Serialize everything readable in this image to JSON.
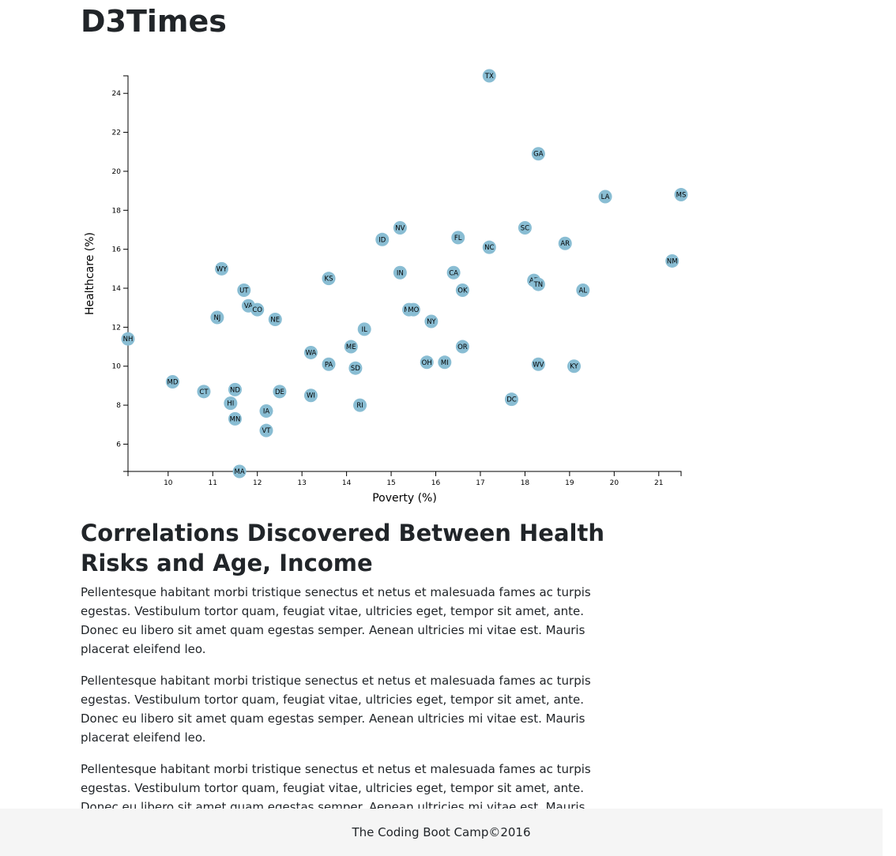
{
  "header": {
    "title": "D3Times"
  },
  "article": {
    "heading": "Correlations Discovered Between Health Risks and Age, Income",
    "paragraphs": [
      "Pellentesque habitant morbi tristique senectus et netus et malesuada fames ac turpis egestas. Vestibulum tortor quam, feugiat vitae, ultricies eget, tempor sit amet, ante. Donec eu libero sit amet quam egestas semper. Aenean ultricies mi vitae est. Mauris placerat eleifend leo.",
      "Pellentesque habitant morbi tristique senectus et netus et malesuada fames ac turpis egestas. Vestibulum tortor quam, feugiat vitae, ultricies eget, tempor sit amet, ante. Donec eu libero sit amet quam egestas semper. Aenean ultricies mi vitae est. Mauris placerat eleifend leo.",
      "Pellentesque habitant morbi tristique senectus et netus et malesuada fames ac turpis egestas. Vestibulum tortor quam, feugiat vitae, ultricies eget, tempor sit amet, ante. Donec eu libero sit amet quam egestas semper. Aenean ultricies mi vitae est. Mauris placerat eleifend leo."
    ]
  },
  "footer": {
    "text": "The Coding Boot Camp©2016"
  },
  "colors": {
    "dot": "#89bdd3",
    "axis": "#000000"
  },
  "chart_data": {
    "type": "scatter",
    "xlabel": "Poverty (%)",
    "ylabel": "Healthcare (%)",
    "xlim": [
      9.1,
      21.5
    ],
    "ylim": [
      4.6,
      24.9
    ],
    "x_ticks": [
      10,
      11,
      12,
      13,
      14,
      15,
      16,
      17,
      18,
      19,
      20,
      21
    ],
    "y_ticks": [
      6,
      8,
      10,
      12,
      14,
      16,
      18,
      20,
      22,
      24
    ],
    "grid": false,
    "points": [
      {
        "label": "TX",
        "x": 17.2,
        "y": 24.9
      },
      {
        "label": "GA",
        "x": 18.3,
        "y": 20.9
      },
      {
        "label": "LA",
        "x": 19.8,
        "y": 18.7
      },
      {
        "label": "MS",
        "x": 21.5,
        "y": 18.8
      },
      {
        "label": "FL",
        "x": 16.5,
        "y": 16.6
      },
      {
        "label": "NV",
        "x": 15.2,
        "y": 17.1
      },
      {
        "label": "SC",
        "x": 18.0,
        "y": 17.1
      },
      {
        "label": "ID",
        "x": 14.8,
        "y": 16.5
      },
      {
        "label": "AR",
        "x": 18.9,
        "y": 16.3
      },
      {
        "label": "NC",
        "x": 17.2,
        "y": 16.1
      },
      {
        "label": "NM",
        "x": 21.3,
        "y": 15.4
      },
      {
        "label": "WY",
        "x": 11.2,
        "y": 15.0
      },
      {
        "label": "IN",
        "x": 15.2,
        "y": 14.8
      },
      {
        "label": "CA",
        "x": 16.4,
        "y": 14.8
      },
      {
        "label": "KS",
        "x": 13.6,
        "y": 14.5
      },
      {
        "label": "AZ",
        "x": 18.2,
        "y": 14.4
      },
      {
        "label": "TN",
        "x": 18.3,
        "y": 14.2
      },
      {
        "label": "UT",
        "x": 11.7,
        "y": 13.9
      },
      {
        "label": "OK",
        "x": 16.6,
        "y": 13.9
      },
      {
        "label": "AL",
        "x": 19.3,
        "y": 13.9
      },
      {
        "label": "VA",
        "x": 11.8,
        "y": 13.1
      },
      {
        "label": "CO",
        "x": 12.0,
        "y": 12.9
      },
      {
        "label": "MT",
        "x": 15.4,
        "y": 12.9
      },
      {
        "label": "MO",
        "x": 15.5,
        "y": 12.9
      },
      {
        "label": "NJ",
        "x": 11.1,
        "y": 12.5
      },
      {
        "label": "NE",
        "x": 12.4,
        "y": 12.4
      },
      {
        "label": "NY",
        "x": 15.9,
        "y": 12.3
      },
      {
        "label": "IL",
        "x": 14.4,
        "y": 11.9
      },
      {
        "label": "NH",
        "x": 9.1,
        "y": 11.4
      },
      {
        "label": "ME",
        "x": 14.1,
        "y": 11.0
      },
      {
        "label": "OR",
        "x": 16.6,
        "y": 11.0
      },
      {
        "label": "WA",
        "x": 13.2,
        "y": 10.7
      },
      {
        "label": "OH",
        "x": 15.8,
        "y": 10.2
      },
      {
        "label": "MI",
        "x": 16.2,
        "y": 10.2
      },
      {
        "label": "PA",
        "x": 13.6,
        "y": 10.1
      },
      {
        "label": "WV",
        "x": 18.3,
        "y": 10.1
      },
      {
        "label": "KY",
        "x": 19.1,
        "y": 10.0
      },
      {
        "label": "SD",
        "x": 14.2,
        "y": 9.9
      },
      {
        "label": "MD",
        "x": 10.1,
        "y": 9.2
      },
      {
        "label": "CT",
        "x": 10.8,
        "y": 8.7
      },
      {
        "label": "ND",
        "x": 11.5,
        "y": 8.8
      },
      {
        "label": "DE",
        "x": 12.5,
        "y": 8.7
      },
      {
        "label": "WI",
        "x": 13.2,
        "y": 8.5
      },
      {
        "label": "DC",
        "x": 17.7,
        "y": 8.3
      },
      {
        "label": "HI",
        "x": 11.4,
        "y": 8.1
      },
      {
        "label": "RI",
        "x": 14.3,
        "y": 8.0
      },
      {
        "label": "IA",
        "x": 12.2,
        "y": 7.7
      },
      {
        "label": "MN",
        "x": 11.5,
        "y": 7.3
      },
      {
        "label": "VT",
        "x": 12.2,
        "y": 6.7
      },
      {
        "label": "MA",
        "x": 11.6,
        "y": 4.6
      }
    ]
  }
}
